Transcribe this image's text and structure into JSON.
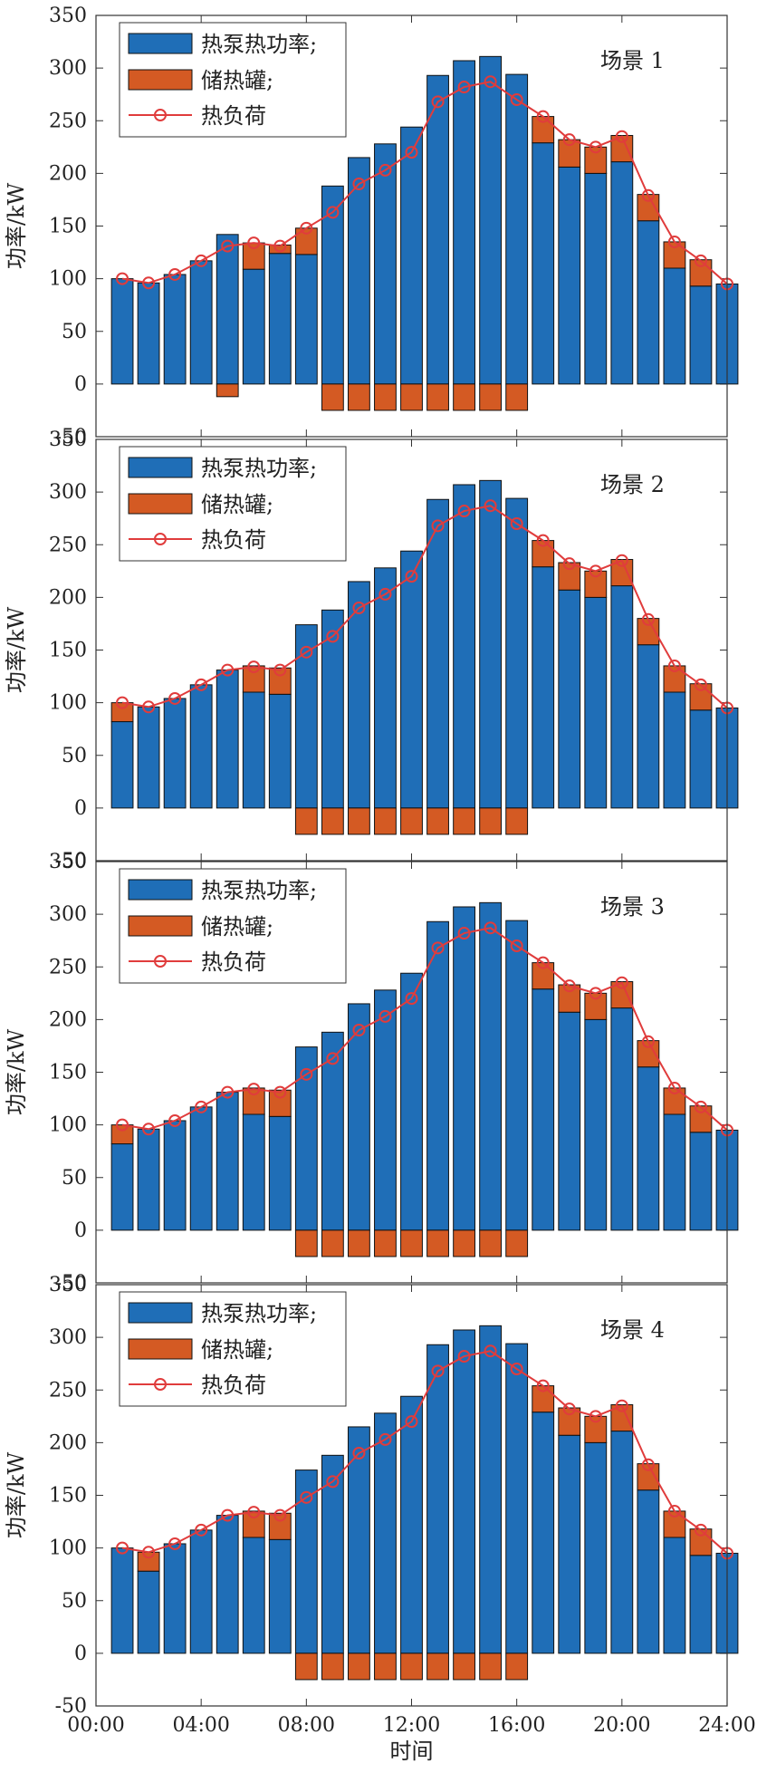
{
  "chart_data": {
    "type": "bar+line",
    "xlabel": "时间",
    "ylabel": "功率/kW",
    "ylim": [
      -50,
      350
    ],
    "yticks": [
      -50,
      0,
      50,
      100,
      150,
      200,
      250,
      300,
      350
    ],
    "xlim": [
      0,
      24
    ],
    "xtick_labels": [
      "00:00",
      "04:00",
      "08:00",
      "12:00",
      "16:00",
      "20:00",
      "24:00"
    ],
    "legend": {
      "heat_pump": "热泵热功率;",
      "storage": "储热罐;",
      "load": "热负荷",
      "position": "top-left"
    },
    "colors": {
      "heat_pump": "#1f6eb7",
      "storage": "#d45a23",
      "load": "#e03c3c"
    },
    "hours": [
      1,
      2,
      3,
      4,
      5,
      6,
      7,
      8,
      9,
      10,
      11,
      12,
      13,
      14,
      15,
      16,
      17,
      18,
      19,
      20,
      21,
      22,
      23,
      24
    ],
    "panels": [
      {
        "label": "场景 1",
        "heat_pump": [
          100,
          96,
          104,
          117,
          142,
          109,
          124,
          123,
          188,
          215,
          228,
          244,
          293,
          307,
          311,
          294,
          229,
          206,
          200,
          211,
          155,
          110,
          93,
          95
        ],
        "storage": [
          0,
          0,
          0,
          0,
          -12,
          25,
          8,
          25,
          -25,
          -25,
          -25,
          -25,
          -25,
          -25,
          -25,
          -25,
          25,
          26,
          25,
          25,
          25,
          25,
          25,
          0
        ],
        "load": [
          100,
          96,
          104,
          117,
          131,
          134,
          131,
          148,
          163,
          190,
          203,
          220,
          268,
          282,
          287,
          270,
          254,
          232,
          225,
          235,
          179,
          135,
          117,
          95
        ]
      },
      {
        "label": "场景 2",
        "heat_pump": [
          82,
          96,
          104,
          117,
          131,
          110,
          108,
          174,
          188,
          215,
          228,
          244,
          293,
          307,
          311,
          294,
          229,
          207,
          200,
          211,
          155,
          110,
          93,
          95
        ],
        "storage": [
          18,
          0,
          0,
          0,
          0,
          25,
          25,
          -25,
          -25,
          -25,
          -25,
          -25,
          -25,
          -25,
          -25,
          -25,
          25,
          26,
          25,
          25,
          25,
          25,
          25,
          0
        ],
        "load": [
          100,
          96,
          104,
          117,
          131,
          134,
          131,
          148,
          163,
          190,
          203,
          220,
          268,
          282,
          287,
          270,
          254,
          232,
          225,
          235,
          179,
          135,
          117,
          95
        ]
      },
      {
        "label": "场景 3",
        "heat_pump": [
          82,
          96,
          104,
          117,
          131,
          110,
          108,
          174,
          188,
          215,
          228,
          244,
          293,
          307,
          311,
          294,
          229,
          207,
          200,
          211,
          155,
          110,
          93,
          95
        ],
        "storage": [
          18,
          0,
          0,
          0,
          0,
          25,
          25,
          -25,
          -25,
          -25,
          -25,
          -25,
          -25,
          -25,
          -25,
          -25,
          25,
          26,
          25,
          25,
          25,
          25,
          25,
          0
        ],
        "load": [
          100,
          96,
          104,
          117,
          131,
          134,
          131,
          148,
          163,
          190,
          203,
          220,
          268,
          282,
          287,
          270,
          254,
          232,
          225,
          235,
          179,
          135,
          117,
          95
        ]
      },
      {
        "label": "场景 4",
        "heat_pump": [
          100,
          78,
          104,
          117,
          131,
          110,
          108,
          174,
          188,
          215,
          228,
          244,
          293,
          307,
          311,
          294,
          229,
          207,
          200,
          211,
          155,
          110,
          93,
          95
        ],
        "storage": [
          0,
          18,
          0,
          0,
          0,
          25,
          25,
          -25,
          -25,
          -25,
          -25,
          -25,
          -25,
          -25,
          -25,
          -25,
          25,
          26,
          25,
          25,
          25,
          25,
          25,
          0
        ],
        "load": [
          100,
          96,
          104,
          117,
          131,
          134,
          131,
          148,
          163,
          190,
          203,
          220,
          268,
          282,
          287,
          270,
          254,
          232,
          225,
          235,
          179,
          135,
          117,
          95
        ]
      }
    ]
  }
}
